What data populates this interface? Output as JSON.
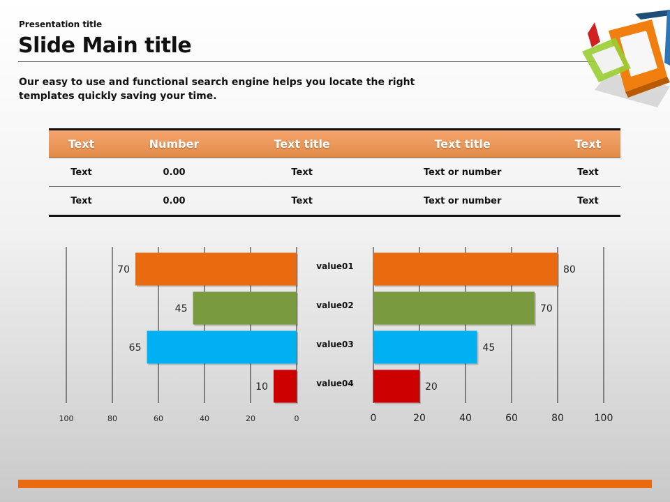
{
  "header": {
    "presentation_title": "Presentation title",
    "main_title": "Slide Main title",
    "subtitle": "Our easy to use and functional search engine helps you locate the right templates quickly saving your time."
  },
  "table": {
    "headers": [
      "Text",
      "Number",
      "Text title",
      "Text title",
      "Text"
    ],
    "rows": [
      [
        "Text",
        "0.00",
        "Text",
        "Text or number",
        "Text"
      ],
      [
        "Text",
        "0.00",
        "Text",
        "Text or number",
        "Text"
      ]
    ]
  },
  "colors": {
    "orange": "#ea6b0f",
    "green": "#7a9a40",
    "blue": "#00b0f0",
    "red": "#cc0000",
    "header_orange": "#e8904f"
  },
  "chart_data": [
    {
      "type": "bar",
      "orientation": "horizontal-reversed",
      "categories": [
        "value01",
        "value02",
        "value03",
        "value04"
      ],
      "values": [
        70,
        45,
        65,
        10
      ],
      "colors": [
        "#ea6b0f",
        "#7a9a40",
        "#00b0f0",
        "#cc0000"
      ],
      "xlim": [
        0,
        100
      ],
      "ticks": [
        100,
        80,
        60,
        40,
        20,
        0
      ],
      "grid": true
    },
    {
      "type": "bar",
      "orientation": "horizontal",
      "categories": [
        "value01",
        "value02",
        "value03",
        "value04"
      ],
      "values": [
        80,
        70,
        45,
        20
      ],
      "colors": [
        "#ea6b0f",
        "#7a9a40",
        "#00b0f0",
        "#cc0000"
      ],
      "xlim": [
        0,
        100
      ],
      "ticks": [
        0,
        20,
        40,
        60,
        80,
        100
      ],
      "grid": true
    }
  ]
}
